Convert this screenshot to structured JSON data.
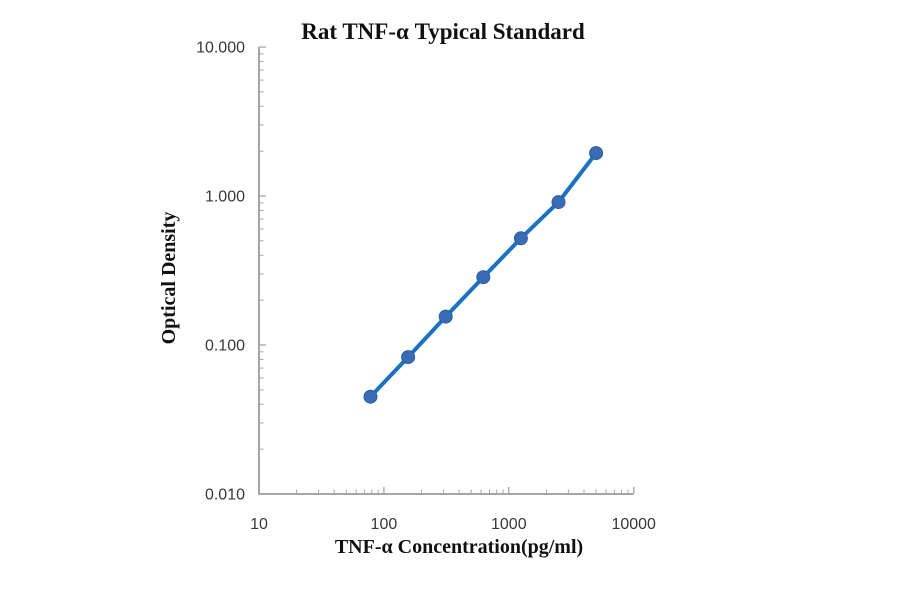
{
  "chart_data": {
    "type": "line",
    "title": "Rat TNF-α Typical Standard",
    "xlabel": "TNF-α Concentration(pg/ml)",
    "ylabel": "Optical Density",
    "x_scale": "log",
    "y_scale": "log",
    "xlim": [
      10,
      10000
    ],
    "ylim": [
      0.01,
      10.0
    ],
    "grid": false,
    "legend": false,
    "x_ticks": [
      {
        "value": 10,
        "label": "10"
      },
      {
        "value": 100,
        "label": "100"
      },
      {
        "value": 1000,
        "label": "1000"
      },
      {
        "value": 10000,
        "label": "10000"
      }
    ],
    "y_ticks": [
      {
        "value": 10,
        "label": "10.000"
      },
      {
        "value": 1,
        "label": "1.000"
      },
      {
        "value": 0.1,
        "label": "0.100"
      },
      {
        "value": 0.01,
        "label": "0.010"
      }
    ],
    "series": [
      {
        "name": "Typical Standard",
        "points": [
          {
            "x": 78.125,
            "y": 0.045
          },
          {
            "x": 156.25,
            "y": 0.083
          },
          {
            "x": 312.5,
            "y": 0.155
          },
          {
            "x": 625,
            "y": 0.285
          },
          {
            "x": 1250,
            "y": 0.52
          },
          {
            "x": 2500,
            "y": 0.91
          },
          {
            "x": 5000,
            "y": 1.94
          }
        ]
      }
    ],
    "colors": {
      "line": "#1b72c3",
      "marker": "#3a6cb5",
      "marker_edge": "#2d5f9b",
      "axis": "#a6a6a6",
      "title_text": "#111111",
      "tick_text": "#383838"
    }
  }
}
